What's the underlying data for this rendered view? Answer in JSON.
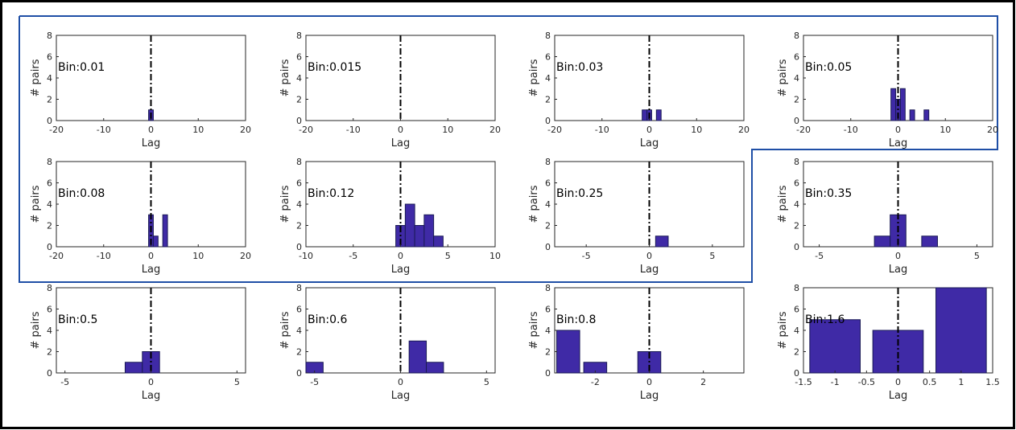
{
  "colors": {
    "bar": "#3f2aa6",
    "highlight": "#1f4fa6",
    "border": "#000000"
  },
  "chart_data": [
    {
      "type": "bar",
      "annotation": "Bin:0.01",
      "xlabel": "Lag",
      "ylabel": "# pairs",
      "xlim": [
        -20,
        20
      ],
      "ylim": [
        0,
        8
      ],
      "xticks": [
        -20,
        -10,
        0,
        10,
        20
      ],
      "yticks": [
        0,
        2,
        4,
        6,
        8
      ],
      "bar_width": 1,
      "bars": [
        {
          "x": 0,
          "y": 1
        }
      ]
    },
    {
      "type": "bar",
      "annotation": "Bin:0.015",
      "xlabel": "Lag",
      "ylabel": "# pairs",
      "xlim": [
        -20,
        20
      ],
      "ylim": [
        0,
        8
      ],
      "xticks": [
        -20,
        -10,
        0,
        10,
        20
      ],
      "yticks": [
        0,
        2,
        4,
        6,
        8
      ],
      "bar_width": 1,
      "bars": []
    },
    {
      "type": "bar",
      "annotation": "Bin:0.03",
      "xlabel": "Lag",
      "ylabel": "# pairs",
      "xlim": [
        -20,
        20
      ],
      "ylim": [
        0,
        8
      ],
      "xticks": [
        -20,
        -10,
        0,
        10,
        20
      ],
      "yticks": [
        0,
        2,
        4,
        6,
        8
      ],
      "bar_width": 1,
      "bars": [
        {
          "x": -1,
          "y": 1
        },
        {
          "x": 0,
          "y": 1
        },
        {
          "x": 2,
          "y": 1
        }
      ]
    },
    {
      "type": "bar",
      "annotation": "Bin:0.05",
      "xlabel": "Lag",
      "ylabel": "# pairs",
      "xlim": [
        -20,
        20
      ],
      "ylim": [
        0,
        8
      ],
      "xticks": [
        -20,
        -10,
        0,
        10,
        20
      ],
      "yticks": [
        0,
        2,
        4,
        6,
        8
      ],
      "bar_width": 1,
      "bars": [
        {
          "x": -1,
          "y": 3
        },
        {
          "x": 0,
          "y": 2
        },
        {
          "x": 1,
          "y": 3
        },
        {
          "x": 3,
          "y": 1
        },
        {
          "x": 6,
          "y": 1
        }
      ]
    },
    {
      "type": "bar",
      "annotation": "Bin:0.08",
      "xlabel": "Lag",
      "ylabel": "# pairs",
      "xlim": [
        -20,
        20
      ],
      "ylim": [
        0,
        8
      ],
      "xticks": [
        -20,
        -10,
        0,
        10,
        20
      ],
      "yticks": [
        0,
        2,
        4,
        6,
        8
      ],
      "bar_width": 1,
      "bars": [
        {
          "x": 0,
          "y": 3
        },
        {
          "x": 1,
          "y": 1
        },
        {
          "x": 3,
          "y": 3
        }
      ]
    },
    {
      "type": "bar",
      "annotation": "Bin:0.12",
      "xlabel": "Lag",
      "ylabel": "# pairs",
      "xlim": [
        -10,
        10
      ],
      "ylim": [
        0,
        8
      ],
      "xticks": [
        -10,
        -5,
        0,
        5,
        10
      ],
      "yticks": [
        0,
        2,
        4,
        6,
        8
      ],
      "bar_width": 1,
      "bars": [
        {
          "x": 0,
          "y": 2
        },
        {
          "x": 1,
          "y": 4
        },
        {
          "x": 2,
          "y": 2
        },
        {
          "x": 3,
          "y": 3
        },
        {
          "x": 4,
          "y": 1
        }
      ]
    },
    {
      "type": "bar",
      "annotation": "Bin:0.25",
      "xlabel": "Lag",
      "ylabel": "# pairs",
      "xlim": [
        -7.5,
        7.5
      ],
      "ylim": [
        0,
        8
      ],
      "xticks": [
        -5,
        0,
        5
      ],
      "yticks": [
        0,
        2,
        4,
        6,
        8
      ],
      "bar_width": 1,
      "bars": [
        {
          "x": 1,
          "y": 1
        }
      ]
    },
    {
      "type": "bar",
      "annotation": "Bin:0.35",
      "xlabel": "Lag",
      "ylabel": "# pairs",
      "xlim": [
        -6,
        6
      ],
      "ylim": [
        0,
        8
      ],
      "xticks": [
        -5,
        0,
        5
      ],
      "yticks": [
        0,
        2,
        4,
        6,
        8
      ],
      "bar_width": 1,
      "bars": [
        {
          "x": -1,
          "y": 1
        },
        {
          "x": 0,
          "y": 3
        },
        {
          "x": 2,
          "y": 1
        }
      ]
    },
    {
      "type": "bar",
      "annotation": "Bin:0.5",
      "xlabel": "Lag",
      "ylabel": "# pairs",
      "xlim": [
        -5.5,
        5.5
      ],
      "ylim": [
        0,
        8
      ],
      "xticks": [
        -5,
        0,
        5
      ],
      "yticks": [
        0,
        2,
        4,
        6,
        8
      ],
      "bar_width": 1,
      "bars": [
        {
          "x": -1,
          "y": 1
        },
        {
          "x": 0,
          "y": 2
        }
      ]
    },
    {
      "type": "bar",
      "annotation": "Bin:0.6",
      "xlabel": "Lag",
      "ylabel": "# pairs",
      "xlim": [
        -5.5,
        5.5
      ],
      "ylim": [
        0,
        8
      ],
      "xticks": [
        -5,
        0,
        5
      ],
      "yticks": [
        0,
        2,
        4,
        6,
        8
      ],
      "bar_width": 1,
      "bars": [
        {
          "x": -5,
          "y": 1
        },
        {
          "x": 1,
          "y": 3
        },
        {
          "x": 2,
          "y": 1
        }
      ]
    },
    {
      "type": "bar",
      "annotation": "Bin:0.8",
      "xlabel": "Lag",
      "ylabel": "# pairs",
      "xlim": [
        -3.5,
        3.5
      ],
      "ylim": [
        0,
        8
      ],
      "xticks": [
        -2,
        0,
        2
      ],
      "yticks": [
        0,
        2,
        4,
        6,
        8
      ],
      "bar_width": 0.85,
      "bars": [
        {
          "x": -3,
          "y": 4
        },
        {
          "x": -2,
          "y": 1
        },
        {
          "x": 0,
          "y": 2
        }
      ]
    },
    {
      "type": "bar",
      "annotation": "Bin:1.6",
      "xlabel": "Lag",
      "ylabel": "# pairs",
      "xlim": [
        -1.5,
        1.5
      ],
      "ylim": [
        0,
        8
      ],
      "xticks": [
        -1.5,
        -1,
        -0.5,
        0,
        0.5,
        1,
        1.5
      ],
      "yticks": [
        0,
        2,
        4,
        6,
        8
      ],
      "bar_width": 0.8,
      "bars": [
        {
          "x": -1,
          "y": 5
        },
        {
          "x": 0,
          "y": 4
        },
        {
          "x": 1,
          "y": 8
        }
      ]
    }
  ]
}
